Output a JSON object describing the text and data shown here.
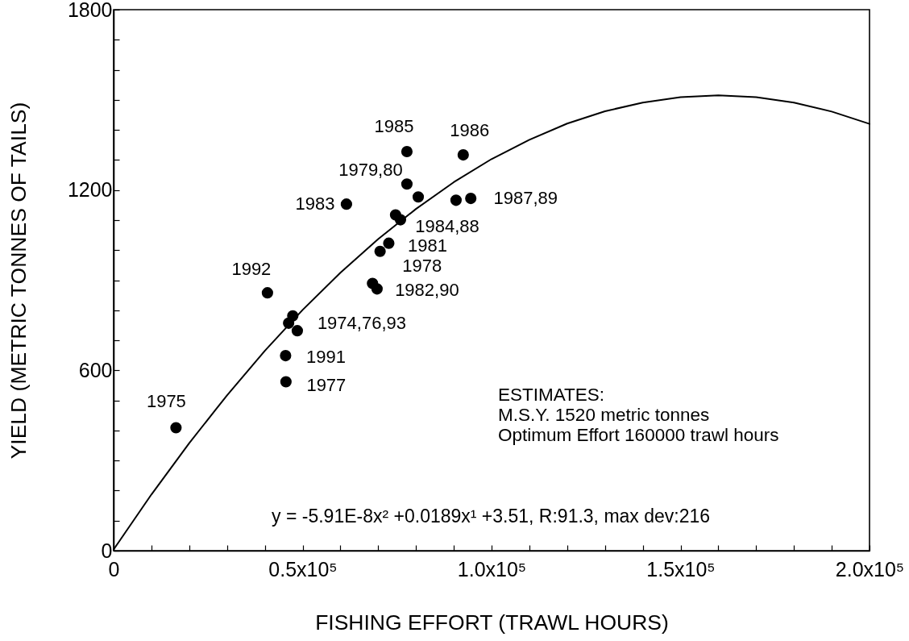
{
  "chart_data": {
    "type": "scatter",
    "xlabel": "FISHING EFFORT (TRAWL HOURS)",
    "ylabel": "YIELD (METRIC TONNES OF TAILS)",
    "series": [
      {
        "color": "#000000",
        "marker": "circle",
        "x": [
          16500,
          40700,
          45500,
          45600,
          46300,
          47400,
          48600,
          61600,
          68500,
          69700,
          70500,
          72800,
          74600,
          75900,
          77600,
          77600,
          80600,
          90600,
          92500,
          94500
        ],
        "values": [
          409,
          858,
          649,
          562,
          757,
          781,
          732,
          1153,
          889,
          871,
          996,
          1023,
          1117,
          1101,
          1328,
          1220,
          1177,
          1166,
          1317,
          1172
        ]
      },
      {
        "type": "line",
        "color": "#000000",
        "marker": "none",
        "line_style": "solid",
        "x": [
          0,
          10000,
          20000,
          30000,
          40000,
          50000,
          60000,
          70000,
          80000,
          90000,
          100000,
          110000,
          120000,
          130000,
          140000,
          150000,
          160000,
          170000,
          180000,
          190000,
          200000
        ],
        "values": [
          4,
          187,
          358,
          517,
          665,
          801,
          925,
          1037,
          1137,
          1226,
          1303,
          1367,
          1421,
          1462,
          1491,
          1509,
          1515,
          1509,
          1491,
          1461,
          1420
        ]
      }
    ],
    "xlim": [
      0,
      200000
    ],
    "ylim": [
      0,
      1800
    ],
    "xticks": [
      0,
      {
        "value": 10000,
        "label": null
      },
      {
        "value": 20000,
        "label": null
      },
      {
        "value": 30000,
        "label": null
      },
      {
        "value": 40000,
        "label": null
      },
      {
        "value": 50000,
        "label": "0.5x10⁵"
      },
      {
        "value": 60000,
        "label": null
      },
      {
        "value": 70000,
        "label": null
      },
      {
        "value": 80000,
        "label": null
      },
      {
        "value": 90000,
        "label": null
      },
      {
        "value": 100000,
        "label": "1.0x10⁵"
      },
      {
        "value": 110000,
        "label": null
      },
      {
        "value": 120000,
        "label": null
      },
      {
        "value": 130000,
        "label": null
      },
      {
        "value": 140000,
        "label": null
      },
      {
        "value": 150000,
        "label": "1.5x10⁵"
      },
      {
        "value": 160000,
        "label": null
      },
      {
        "value": 170000,
        "label": null
      },
      {
        "value": 180000,
        "label": null
      },
      {
        "value": 190000,
        "label": null
      },
      {
        "value": 200000,
        "label": "2.0x10⁵"
      }
    ],
    "yticks": [
      0,
      {
        "value": 100,
        "label": null
      },
      {
        "value": 200,
        "label": null
      },
      {
        "value": 300,
        "label": null
      },
      {
        "value": 400,
        "label": null
      },
      {
        "value": 500,
        "label": null
      },
      600,
      {
        "value": 700,
        "label": null
      },
      {
        "value": 800,
        "label": null
      },
      {
        "value": 900,
        "label": null
      },
      {
        "value": 1000,
        "label": null
      },
      {
        "value": 1100,
        "label": null
      },
      1200,
      {
        "value": 1300,
        "label": null
      },
      {
        "value": 1400,
        "label": null
      },
      {
        "value": 1500,
        "label": null
      },
      {
        "value": 1600,
        "label": null
      },
      {
        "value": 1700,
        "label": null
      },
      1800
    ],
    "annotations": [
      {
        "text": "1985",
        "x": 77600,
        "y": 1328
      },
      {
        "text": "1986",
        "x": 92500,
        "y": 1317
      },
      {
        "text": "1979,80",
        "x": 77600,
        "y": 1220
      },
      {
        "text": "1983",
        "x": 61600,
        "y": 1153
      },
      {
        "text": "1987,89",
        "x": 94500,
        "y": 1172
      },
      {
        "text": "1984,88",
        "x": 75900,
        "y": 1101
      },
      {
        "text": "1981",
        "x": 72800,
        "y": 1023
      },
      {
        "text": "1978",
        "x": 70500,
        "y": 996
      },
      {
        "text": "1982,90",
        "x": 69700,
        "y": 871
      },
      {
        "text": "1992",
        "x": 40700,
        "y": 858
      },
      {
        "text": "1974,76,93",
        "x": 48600,
        "y": 732
      },
      {
        "text": "1991",
        "x": 45500,
        "y": 649
      },
      {
        "text": "1977",
        "x": 45600,
        "y": 562
      },
      {
        "text": "1975",
        "x": 16500,
        "y": 409
      },
      "ESTIMATES:",
      "M.S.Y. 1520 metric tonnes",
      "Optimum Effort 160000 trawl hours",
      "y = -5.91E-8x² +0.0189x¹ +3.51, R:91.3, max dev:216"
    ]
  }
}
